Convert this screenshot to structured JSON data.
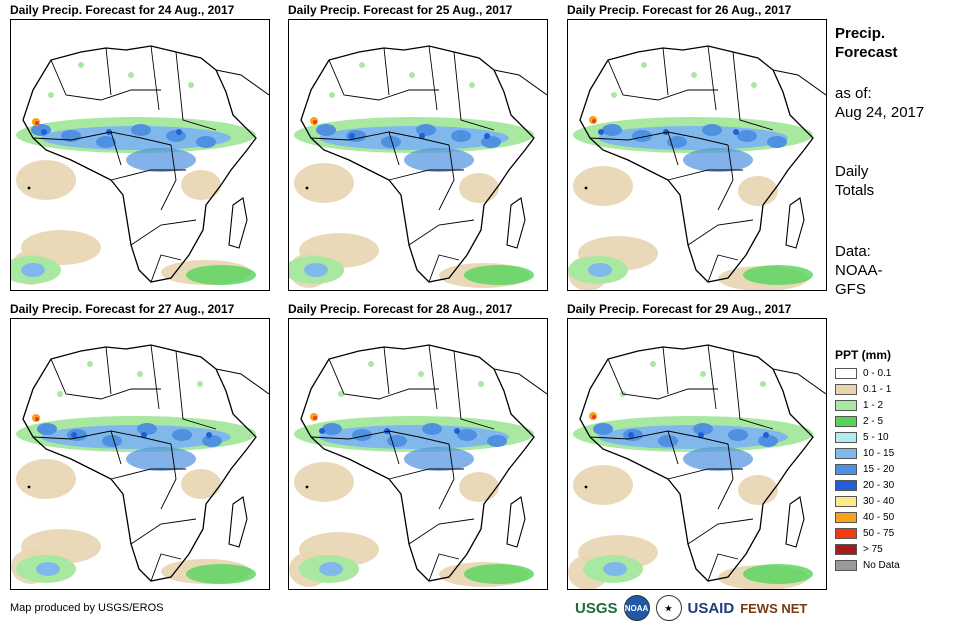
{
  "panels": [
    {
      "title": "Daily Precip. Forecast for 24 Aug., 2017"
    },
    {
      "title": "Daily Precip. Forecast for 25 Aug., 2017"
    },
    {
      "title": "Daily Precip. Forecast for 26 Aug., 2017"
    },
    {
      "title": "Daily Precip. Forecast for 27 Aug., 2017"
    },
    {
      "title": "Daily Precip. Forecast for 28 Aug., 2017"
    },
    {
      "title": "Daily Precip. Forecast for 29 Aug., 2017"
    }
  ],
  "side": {
    "heading_line1": "Precip.",
    "heading_line2": "Forecast",
    "asof_label": "as of:",
    "asof_date": "Aug 24, 2017",
    "totals_line1": "Daily",
    "totals_line2": "Totals",
    "data_label": "Data:",
    "data_line1": "NOAA-",
    "data_line2": "GFS"
  },
  "legend": {
    "title": "PPT (mm)",
    "items": [
      {
        "label": "0 - 0.1",
        "color": "#ffffff"
      },
      {
        "label": "0.1 - 1",
        "color": "#e8d5b0"
      },
      {
        "label": "1 - 2",
        "color": "#a8e8a0"
      },
      {
        "label": "2 - 5",
        "color": "#55d35a"
      },
      {
        "label": "5 - 10",
        "color": "#b0ecf0"
      },
      {
        "label": "10 - 15",
        "color": "#80b8ec"
      },
      {
        "label": "15 - 20",
        "color": "#4f90e0"
      },
      {
        "label": "20 - 30",
        "color": "#1f5fd8"
      },
      {
        "label": "30 - 40",
        "color": "#fde88a"
      },
      {
        "label": "40 - 50",
        "color": "#f7a21a"
      },
      {
        "label": "50 - 75",
        "color": "#ef3b0e"
      },
      {
        "label": "> 75",
        "color": "#a11d1d"
      },
      {
        "label": "No Data",
        "color": "#9a9a9a"
      }
    ]
  },
  "footer": {
    "credit": "Map produced by USGS/EROS"
  },
  "logos": {
    "usgs": "USGS",
    "noaa": "NOAA",
    "usaid": "USAID",
    "fews": "FEWS NET"
  }
}
